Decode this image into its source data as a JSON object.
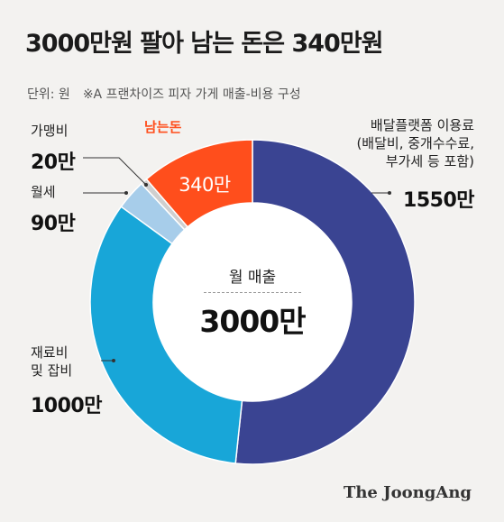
{
  "header": {
    "title": "3000만원 팔아 남는 돈은 340만원",
    "unit": "단위: 원",
    "note": "※A 프랜차이즈 피자 가게 매출-비용 구성"
  },
  "chart_data": {
    "type": "pie",
    "donut": true,
    "title": "3000만원 팔아 남는 돈은 340만원",
    "unit": "원",
    "center_label": "월 매출",
    "center_value": "3000만",
    "total": 3000,
    "slices": [
      {
        "label": "배달플랫폼 이용료 (배달비, 중개수수료, 부가세 등 포함)",
        "value": 1550,
        "value_label": "1550만",
        "color": "#3a4492"
      },
      {
        "label": "재료비 및 잡비",
        "value": 1000,
        "value_label": "1000만",
        "color": "#18a6d8"
      },
      {
        "label": "월세",
        "value": 90,
        "value_label": "90만",
        "color": "#a7cdea"
      },
      {
        "label": "가맹비",
        "value": 20,
        "value_label": "20만",
        "color": "#cfcfcf"
      },
      {
        "label": "남는돈",
        "value": 340,
        "value_label": "340만",
        "color": "#ff4e1c"
      }
    ]
  },
  "labels": {
    "platform_l1": "배달플랫폼 이용료",
    "platform_l2": "(배달비, 중개수수료,",
    "platform_l3": "부가세 등 포함)",
    "material_l1": "재료비",
    "material_l2": "및 잡비",
    "rent": "월세",
    "fee": "가맹비",
    "profit": "남는돈"
  },
  "credit": "The JoongAng"
}
